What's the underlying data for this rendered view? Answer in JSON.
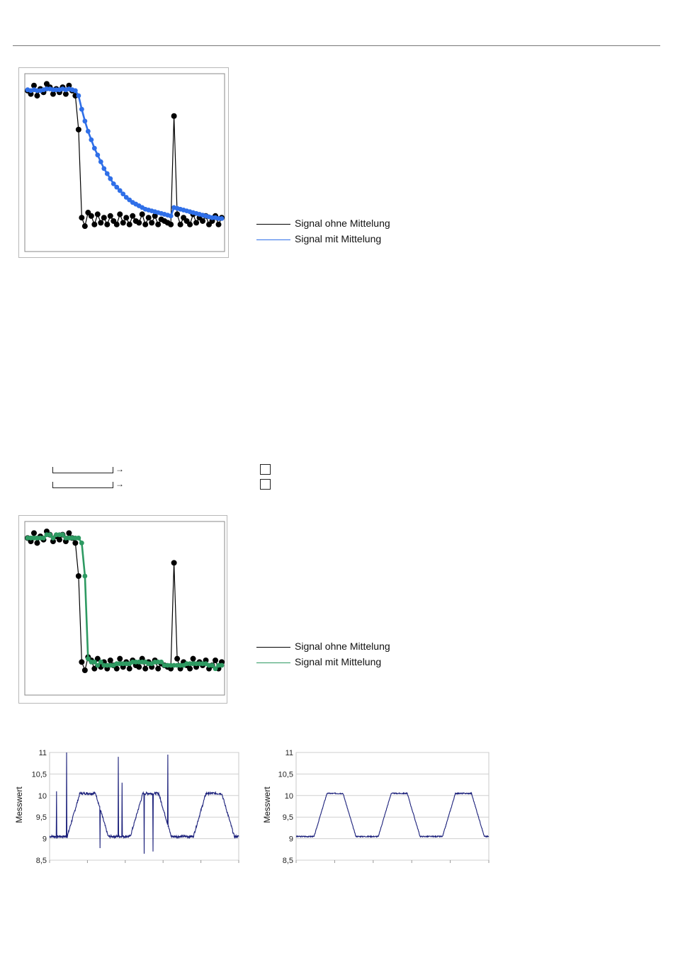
{
  "legend_top": {
    "series1": "Signal ohne Mittelung",
    "series2": "Signal mit Mittelung"
  },
  "legend_bottom": {
    "series1": "Signal ohne Mittelung",
    "series2": "Signal mit Mittelung"
  },
  "colors": {
    "raw": "#000000",
    "averaged_top": "#2f6fe8",
    "averaged_bottom": "#2e9a62",
    "measure_line": "#1a1f7a"
  },
  "chart_data": [
    {
      "type": "line",
      "title": "",
      "series": [
        {
          "name": "Signal ohne Mittelung",
          "markers": true,
          "values": [
            9.5,
            9.3,
            9.8,
            9.2,
            9.6,
            9.4,
            9.9,
            9.7,
            9.3,
            9.6,
            9.4,
            9.7,
            9.3,
            9.8,
            9.5,
            9.2,
            7.2,
            2.0,
            1.5,
            2.3,
            2.1,
            1.6,
            2.2,
            1.7,
            2.0,
            1.6,
            2.1,
            1.8,
            1.6,
            2.2,
            1.7,
            2.0,
            1.6,
            2.1,
            1.8,
            1.7,
            2.2,
            1.6,
            2.0,
            1.7,
            2.1,
            1.6,
            1.9,
            1.8,
            1.7,
            1.6,
            8.0,
            2.2,
            1.6,
            2.0,
            1.8,
            1.6,
            2.2,
            1.7,
            2.0,
            1.8,
            2.1,
            1.6,
            1.8,
            2.1,
            1.6,
            2.0
          ],
          "color": "#000000"
        },
        {
          "name": "Signal mit Mittelung",
          "markers": true,
          "values": [
            9.55,
            9.5,
            9.55,
            9.5,
            9.5,
            9.55,
            9.6,
            9.6,
            9.55,
            9.55,
            9.55,
            9.6,
            9.55,
            9.6,
            9.55,
            9.5,
            9.2,
            8.4,
            7.7,
            7.1,
            6.6,
            6.1,
            5.7,
            5.3,
            4.9,
            4.6,
            4.3,
            4.0,
            3.8,
            3.6,
            3.4,
            3.2,
            3.05,
            2.9,
            2.8,
            2.7,
            2.6,
            2.5,
            2.45,
            2.4,
            2.35,
            2.3,
            2.25,
            2.2,
            2.15,
            2.1,
            2.6,
            2.55,
            2.5,
            2.45,
            2.4,
            2.35,
            2.3,
            2.25,
            2.2,
            2.15,
            2.1,
            2.05,
            2.0,
            2.0,
            1.95,
            1.95
          ],
          "color": "#2f6fe8"
        }
      ],
      "ylim": [
        0,
        10.5
      ]
    },
    {
      "type": "line",
      "title": "",
      "series": [
        {
          "name": "Signal ohne Mittelung",
          "markers": true,
          "values": [
            9.5,
            9.3,
            9.8,
            9.2,
            9.6,
            9.4,
            9.9,
            9.7,
            9.3,
            9.6,
            9.4,
            9.7,
            9.3,
            9.8,
            9.5,
            9.2,
            7.2,
            2.0,
            1.5,
            2.3,
            2.1,
            1.6,
            2.2,
            1.7,
            2.0,
            1.6,
            2.1,
            1.8,
            1.6,
            2.2,
            1.7,
            2.0,
            1.6,
            2.1,
            1.8,
            1.7,
            2.2,
            1.6,
            2.0,
            1.7,
            2.1,
            1.6,
            1.9,
            1.8,
            1.7,
            1.6,
            8.0,
            2.2,
            1.6,
            2.0,
            1.8,
            1.6,
            2.2,
            1.7,
            2.0,
            1.8,
            2.1,
            1.6,
            1.8,
            2.1,
            1.6,
            2.0
          ],
          "color": "#000000"
        },
        {
          "name": "Signal mit Mittelung",
          "markers": true,
          "values": [
            9.5,
            9.5,
            9.5,
            9.5,
            9.5,
            9.5,
            9.7,
            9.7,
            9.5,
            9.7,
            9.7,
            9.7,
            9.5,
            9.5,
            9.5,
            9.5,
            9.5,
            9.2,
            7.2,
            2.2,
            2.0,
            2.0,
            1.8,
            2.0,
            1.8,
            1.8,
            1.8,
            1.8,
            1.9,
            1.9,
            1.9,
            1.9,
            1.9,
            2.0,
            2.0,
            2.0,
            2.0,
            2.0,
            1.9,
            1.9,
            2.0,
            2.0,
            2.0,
            1.8,
            1.8,
            1.8,
            1.8,
            1.8,
            1.8,
            1.8,
            1.9,
            1.9,
            1.9,
            1.9,
            1.9,
            1.9,
            1.9,
            1.8,
            1.8,
            1.6,
            1.8,
            1.8
          ],
          "color": "#2e9a62"
        }
      ],
      "ylim": [
        0,
        10.5
      ]
    },
    {
      "type": "line",
      "title": "",
      "ylabel": "Messwert",
      "ylim": [
        8.5,
        11
      ],
      "yticks": [
        "11",
        "10,5",
        "10",
        "9,5",
        "9",
        "8,5"
      ],
      "yticks_values": [
        11,
        10.5,
        10,
        9.5,
        9,
        8.5
      ],
      "grid": true,
      "periods": 3,
      "waveform": "trapezoid",
      "low": 9.05,
      "high": 10.05,
      "noise": "spiky",
      "spikes": [
        11.0,
        10.9,
        10.95,
        8.65,
        8.75
      ]
    },
    {
      "type": "line",
      "title": "",
      "ylabel": "Messwert",
      "ylim": [
        8.5,
        11
      ],
      "yticks": [
        "11",
        "10,5",
        "10",
        "9,5",
        "9",
        "8,5"
      ],
      "yticks_values": [
        11,
        10.5,
        10,
        9.5,
        9,
        8.5
      ],
      "grid": true,
      "periods": 3,
      "waveform": "trapezoid",
      "low": 9.05,
      "high": 10.05,
      "noise": "smooth"
    }
  ]
}
